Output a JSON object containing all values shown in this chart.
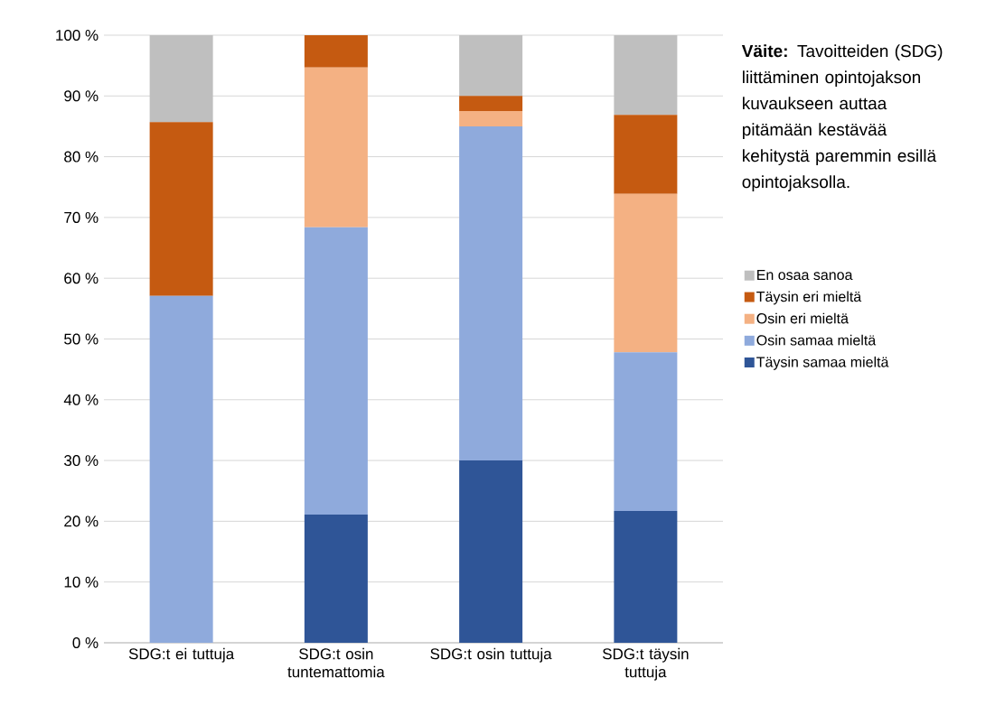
{
  "chart_data": {
    "type": "bar",
    "stacked": true,
    "categories": [
      "SDG:t ei tuttuja",
      "SDG:t osin tuntemattomia",
      "SDG:t osin tuttuja",
      "SDG:t täysin tuttuja"
    ],
    "series": [
      {
        "name": "Täysin samaa mieltä",
        "color": "#2f5597",
        "values": [
          0,
          21.1,
          30,
          21.7
        ]
      },
      {
        "name": "Osin samaa mieltä",
        "color": "#8faadc",
        "values": [
          57.1,
          47.3,
          55,
          26.1
        ]
      },
      {
        "name": "Osin eri mieltä",
        "color": "#f4b183",
        "values": [
          0,
          26.3,
          2.5,
          26.1
        ]
      },
      {
        "name": "Täysin eri mieltä",
        "color": "#c55a11",
        "values": [
          28.6,
          5.3,
          2.5,
          13.0
        ]
      },
      {
        "name": "En osaa sanoa",
        "color": "#bfbfbf",
        "values": [
          14.3,
          0,
          10,
          13.1
        ]
      }
    ],
    "ylim": [
      0,
      100
    ],
    "yticks": [
      {
        "value": 0,
        "label": "0 %"
      },
      {
        "value": 10,
        "label": "10 %"
      },
      {
        "value": 20,
        "label": "20 %"
      },
      {
        "value": 30,
        "label": "30 %"
      },
      {
        "value": 40,
        "label": "40 %"
      },
      {
        "value": 50,
        "label": "50 %"
      },
      {
        "value": 60,
        "label": "60 %"
      },
      {
        "value": 70,
        "label": "70 %"
      },
      {
        "value": 80,
        "label": "80 %"
      },
      {
        "value": 90,
        "label": "90 %"
      },
      {
        "value": 100,
        "label": "100 %"
      }
    ],
    "grid": "y",
    "legend": "right",
    "annotations": [
      "**Väite:** Tavoitteiden (SDG) liittäminen opintojakson kuvaukseen auttaa pitämään kestävää kehitystä paremmin esillä opintojaksolla."
    ]
  }
}
